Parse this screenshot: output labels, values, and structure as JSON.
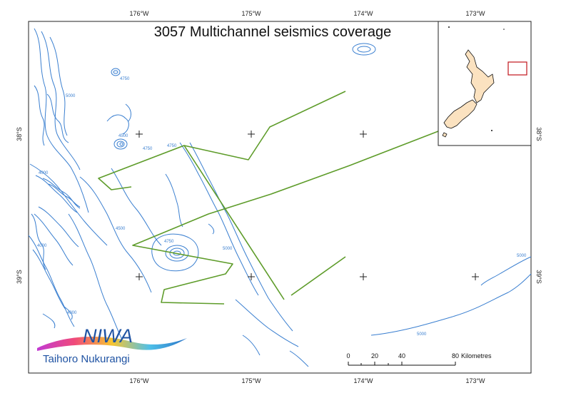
{
  "map": {
    "title": "3057 Multichannel seismics coverage",
    "longitude_labels": [
      "176°W",
      "175°W",
      "174°W",
      "173°W"
    ],
    "latitude_labels": [
      "38°S",
      "39°S"
    ],
    "contour_labels": [
      "4750",
      "5000",
      "4500",
      "4750",
      "4750",
      "4000",
      "4500",
      "4750",
      "5000",
      "4000",
      "4000",
      "5000",
      "5000"
    ]
  },
  "scale_bar": {
    "ticks": [
      "0",
      "20",
      "40",
      "80"
    ],
    "unit": "Kilometres"
  },
  "logo": {
    "name": "NIWA",
    "subtitle": "Taihoro Nukurangi"
  },
  "inset": {
    "land_color": "#fbe2c0",
    "box_color": "#c0141c"
  },
  "colors": {
    "contour": "#3a7fd0",
    "track": "#5e9c2a"
  }
}
